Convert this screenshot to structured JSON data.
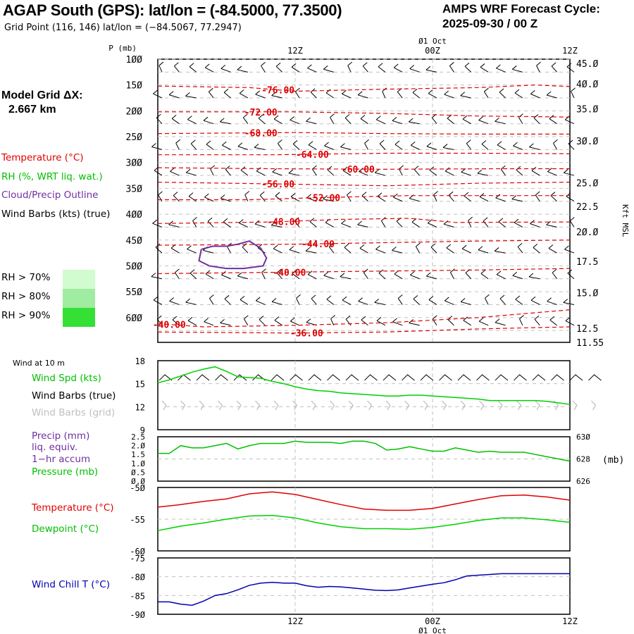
{
  "header": {
    "title": "AGAP South (GPS):  lat/lon = (-84.5000, 77.3500)",
    "subtitle": "Grid Point (116, 146) lat/lon = (−84.5067, 77.2947)",
    "cycle_line1": "AMPS WRF Forecast Cycle:",
    "cycle_line2": "2025-09-30 / 00  Z",
    "grid_dx_line1": "Model Grid ΔX:",
    "grid_dx_line2": "2.667 km"
  },
  "legend": {
    "temperature": "Temperature (°C)",
    "rh": "RH (%, WRT liq. wat.)",
    "cloud": "Cloud/Precip Outline",
    "wind_barbs": "Wind Barbs (kts) (true)",
    "rh_levels": [
      {
        "label": "RH > 70%",
        "color": "#d0fcd0"
      },
      {
        "label": "RH > 80%",
        "color": "#a0eca0"
      },
      {
        "label": "RH > 90%",
        "color": "#34e034"
      }
    ],
    "colors": {
      "temperature": "#e00000",
      "rh": "#00c000",
      "cloud": "#7030a0",
      "wind": "#000000"
    }
  },
  "time_axis": {
    "ticks": [
      "12Z",
      "00Z",
      "12Z"
    ],
    "date_label": "Ø1 Oct"
  },
  "chart_data": [
    {
      "type": "line",
      "name": "cross-section",
      "title": "Time-height cross section",
      "ylabel": "P (mb)",
      "y2label": "Kft MSL",
      "ylim": [
        100,
        630
      ],
      "yticks": [
        100,
        150,
        200,
        250,
        300,
        350,
        400,
        450,
        500,
        550,
        600
      ],
      "y2ticks": [
        {
          "p": 108,
          "label": "45.0"
        },
        {
          "p": 148,
          "label": "40.0"
        },
        {
          "p": 196,
          "label": "35.0"
        },
        {
          "p": 258,
          "label": "30.0"
        },
        {
          "p": 339,
          "label": "25.0"
        },
        {
          "p": 385,
          "label": "22.5"
        },
        {
          "p": 434,
          "label": "20.0"
        },
        {
          "p": 491,
          "label": "17.5"
        },
        {
          "p": 552,
          "label": "15.0"
        },
        {
          "p": 621,
          "label": "12.5"
        },
        {
          "p": 648,
          "label": "11.55"
        }
      ],
      "x_hours": [
        0,
        36
      ],
      "isotherms": [
        {
          "label": "-76.00",
          "label_hour": 10.5,
          "points": [
            [
              0,
              152
            ],
            [
              8,
              155
            ],
            [
              12,
              162
            ],
            [
              20,
              158
            ],
            [
              28,
              155
            ],
            [
              33,
              150
            ],
            [
              36,
              153
            ]
          ]
        },
        {
          "label": "-72.00",
          "label_hour": 9,
          "points": [
            [
              0,
              202
            ],
            [
              12,
              202
            ],
            [
              20,
              205
            ],
            [
              28,
              210
            ],
            [
              36,
              212
            ]
          ]
        },
        {
          "label": "-68.00",
          "label_hour": 9,
          "points": [
            [
              0,
              244
            ],
            [
              12,
              242
            ],
            [
              20,
              244
            ],
            [
              28,
              245
            ],
            [
              36,
              245
            ]
          ]
        },
        {
          "label": "-64.00",
          "label_hour": 13.5,
          "points": [
            [
              0,
              285
            ],
            [
              10,
              285
            ],
            [
              20,
              282
            ],
            [
              28,
              282
            ],
            [
              36,
              283
            ]
          ]
        },
        {
          "label": "-60.00",
          "label_hour": 17.5,
          "points": [
            [
              0,
              310
            ],
            [
              10,
              312
            ],
            [
              20,
              313
            ],
            [
              30,
              312
            ],
            [
              36,
              312
            ]
          ]
        },
        {
          "label": "-56.00",
          "label_hour": 10.5,
          "points": [
            [
              0,
              338
            ],
            [
              12,
              342
            ],
            [
              20,
              345
            ],
            [
              28,
              340
            ],
            [
              36,
              338
            ]
          ]
        },
        {
          "label": "-52.00",
          "label_hour": 14.5,
          "points": [
            [
              0,
              372
            ],
            [
              8,
              372
            ],
            [
              14,
              368
            ],
            [
              22,
              364
            ],
            [
              36,
              364
            ]
          ]
        },
        {
          "label": "-48.00",
          "label_hour": 11,
          "points": [
            [
              0,
              418
            ],
            [
              10,
              415
            ],
            [
              16,
              410
            ],
            [
              22,
              408
            ],
            [
              26,
              416
            ],
            [
              36,
              415
            ]
          ]
        },
        {
          "label": "-44.00",
          "label_hour": 14,
          "points": [
            [
              0,
              460
            ],
            [
              12,
              458
            ],
            [
              20,
              455
            ],
            [
              28,
              452
            ],
            [
              36,
              450
            ]
          ]
        },
        {
          "label": "-40.00",
          "label_hour": 11.5,
          "points": [
            [
              0,
              515
            ],
            [
              12,
              512
            ],
            [
              20,
              510
            ],
            [
              28,
              508
            ],
            [
              36,
              505
            ]
          ]
        },
        {
          "label": "-40.00",
          "label_hour": 1,
          "points": [
            [
              0,
              612
            ],
            [
              4,
              618
            ],
            [
              12,
              615
            ],
            [
              20,
              610
            ],
            [
              28,
              600
            ],
            [
              36,
              585
            ]
          ]
        },
        {
          "label": "-36.00",
          "label_hour": 13,
          "points": [
            [
              0,
              628
            ],
            [
              12,
              630
            ],
            [
              20,
              628
            ],
            [
              28,
              622
            ],
            [
              36,
              618
            ]
          ]
        }
      ],
      "cloud_outline": [
        [
          3.8,
          468
        ],
        [
          4.8,
          462
        ],
        [
          6,
          462
        ],
        [
          7,
          458
        ],
        [
          8,
          452
        ],
        [
          9,
          466
        ],
        [
          9.5,
          485
        ],
        [
          9.2,
          500
        ],
        [
          7.5,
          505
        ],
        [
          6,
          505
        ],
        [
          4.5,
          500
        ],
        [
          3.6,
          490
        ],
        [
          3.8,
          468
        ]
      ],
      "wind_barb_levels": [
        125,
        175,
        225,
        275,
        325,
        375,
        425,
        475,
        525,
        575,
        615
      ],
      "wind_barb_hours": [
        0,
        1.5,
        3,
        4.5,
        6,
        7.5,
        9,
        10.5,
        12,
        13.5,
        15,
        16.5,
        18,
        19.5,
        21,
        22.5,
        24,
        25.5,
        27,
        28.5,
        30,
        31.5,
        33,
        34.5,
        36
      ]
    },
    {
      "type": "line",
      "name": "wind-10m",
      "title": "Wind at 10 m",
      "ylabel": "Wind Spd (kts)",
      "ylim": [
        9,
        18
      ],
      "yticks": [
        9,
        12,
        15,
        18
      ],
      "series": [
        {
          "name": "Wind Spd (kts)",
          "color": "#00d000",
          "x": [
            0,
            1,
            2,
            3,
            4,
            5,
            6,
            7,
            8,
            9,
            10,
            11,
            12,
            13,
            14,
            15,
            16,
            17,
            18,
            19,
            20,
            21,
            22,
            23,
            24,
            25,
            26,
            27,
            28,
            29,
            30,
            31,
            32,
            33,
            34,
            35,
            36
          ],
          "values": [
            15.1,
            15.5,
            16.0,
            16.5,
            16.9,
            17.2,
            16.6,
            15.9,
            15.8,
            15.7,
            15.3,
            15.0,
            14.6,
            14.3,
            14.1,
            14.0,
            13.8,
            13.7,
            13.6,
            13.5,
            13.4,
            13.4,
            13.5,
            13.5,
            13.4,
            13.3,
            13.2,
            13.1,
            13.0,
            12.8,
            12.8,
            12.8,
            12.8,
            12.8,
            12.7,
            12.5,
            12.3
          ]
        }
      ],
      "barb_rows": [
        "Wind Barbs (true)",
        "Wind Barbs (grid)"
      ]
    },
    {
      "type": "line",
      "name": "precip-pressure",
      "title": "Precip / Pressure",
      "ylabel": "Precip (mm)",
      "ylim": [
        0.0,
        2.5
      ],
      "yticks": [
        "0.0",
        "0.5",
        "1.0",
        "1.5",
        "2.0",
        "2.5"
      ],
      "y2lim": [
        626,
        630
      ],
      "y2ticks": [
        "626",
        "628",
        "630"
      ],
      "y2label": "(mb)",
      "series": [
        {
          "name": "Pressure (mb)",
          "color": "#00c000",
          "axis": "y2",
          "x": [
            0,
            1,
            2,
            3,
            4,
            5,
            6,
            7,
            8,
            9,
            10,
            11,
            12,
            13,
            14,
            15,
            16,
            17,
            18,
            19,
            20,
            21,
            22,
            23,
            24,
            25,
            26,
            27,
            28,
            29,
            30,
            31,
            32,
            33,
            34,
            35,
            36
          ],
          "values": [
            628.5,
            628.5,
            629.2,
            629.0,
            629.0,
            629.2,
            629.4,
            628.9,
            629.2,
            629.4,
            629.4,
            629.4,
            629.6,
            629.5,
            629.5,
            629.5,
            629.4,
            629.6,
            629.6,
            629.4,
            628.8,
            628.9,
            629.1,
            628.9,
            628.7,
            628.7,
            629.0,
            628.8,
            628.6,
            628.7,
            628.6,
            628.6,
            628.6,
            628.4,
            628.2,
            628.0,
            627.8
          ]
        }
      ],
      "labels": [
        "Precip (mm)",
        "liq. equiv.",
        "1-hr accum",
        "Pressure (mb)"
      ]
    },
    {
      "type": "line",
      "name": "temp-dewpoint",
      "title": "Temperature / Dewpoint",
      "ylim": [
        -60,
        -50
      ],
      "yticks": [
        "-60",
        "-55",
        "-50"
      ],
      "series": [
        {
          "name": "Temperature (°C)",
          "color": "#e00000",
          "x": [
            0,
            2,
            4,
            6,
            8,
            10,
            12,
            14,
            16,
            18,
            20,
            22,
            24,
            26,
            28,
            30,
            32,
            34,
            36
          ],
          "values": [
            -53.1,
            -52.7,
            -52.2,
            -51.8,
            -51.0,
            -50.7,
            -51.1,
            -51.9,
            -52.7,
            -53.4,
            -53.6,
            -53.6,
            -53.3,
            -52.6,
            -51.9,
            -51.3,
            -51.2,
            -51.5,
            -52.0
          ]
        },
        {
          "name": "Dewpoint (°C)",
          "color": "#00d000",
          "x": [
            0,
            2,
            4,
            6,
            8,
            10,
            12,
            14,
            16,
            18,
            20,
            22,
            24,
            26,
            28,
            30,
            32,
            34,
            36
          ],
          "values": [
            -56.8,
            -56.1,
            -55.6,
            -55.0,
            -54.5,
            -54.4,
            -54.8,
            -55.6,
            -56.2,
            -56.5,
            -56.5,
            -56.6,
            -56.3,
            -55.8,
            -55.2,
            -54.8,
            -54.8,
            -55.1,
            -55.5
          ]
        }
      ]
    },
    {
      "type": "line",
      "name": "wind-chill",
      "title": "Wind Chill T",
      "ylim": [
        -90,
        -75
      ],
      "yticks": [
        "-90",
        "-85",
        "-80",
        "-75"
      ],
      "series": [
        {
          "name": "Wind Chill T (°C)",
          "color": "#0000b0",
          "x": [
            0,
            1,
            2,
            3,
            4,
            5,
            6,
            7,
            8,
            9,
            10,
            11,
            12,
            13,
            14,
            15,
            16,
            17,
            18,
            19,
            20,
            21,
            22,
            23,
            24,
            25,
            26,
            27,
            28,
            29,
            30,
            31,
            32,
            33,
            34,
            35,
            36
          ],
          "values": [
            -86.7,
            -86.7,
            -87.3,
            -87.6,
            -86.5,
            -85.0,
            -84.5,
            -83.5,
            -82.3,
            -81.7,
            -81.5,
            -81.7,
            -81.7,
            -82.4,
            -82.8,
            -82.6,
            -82.7,
            -83.0,
            -83.3,
            -83.6,
            -83.7,
            -83.5,
            -83.0,
            -82.5,
            -82.0,
            -81.6,
            -80.8,
            -79.8,
            -79.6,
            -79.4,
            -79.2,
            -79.2,
            -79.2,
            -79.2,
            -79.2,
            -79.2,
            -79.2
          ]
        }
      ],
      "labels": [
        "Wind Chill T (°C)"
      ]
    }
  ],
  "panels": {
    "wind_title": "Wind at 10 m",
    "wind_spd": "Wind Spd (kts)",
    "barbs_true": "Wind Barbs (true)",
    "barbs_grid": "Wind Barbs (grid)",
    "precip1": "Precip (mm)",
    "precip2": "liq. equiv.",
    "precip3": "1−hr accum",
    "pressure": "Pressure (mb)",
    "temp": "Temperature (°C)",
    "dewp": "Dewpoint (°C)",
    "windchill": "Wind Chill T (°C)",
    "p_axis_label": "P (mb)",
    "kft_label": "Kft MSL",
    "mb_label": "(mb)"
  }
}
